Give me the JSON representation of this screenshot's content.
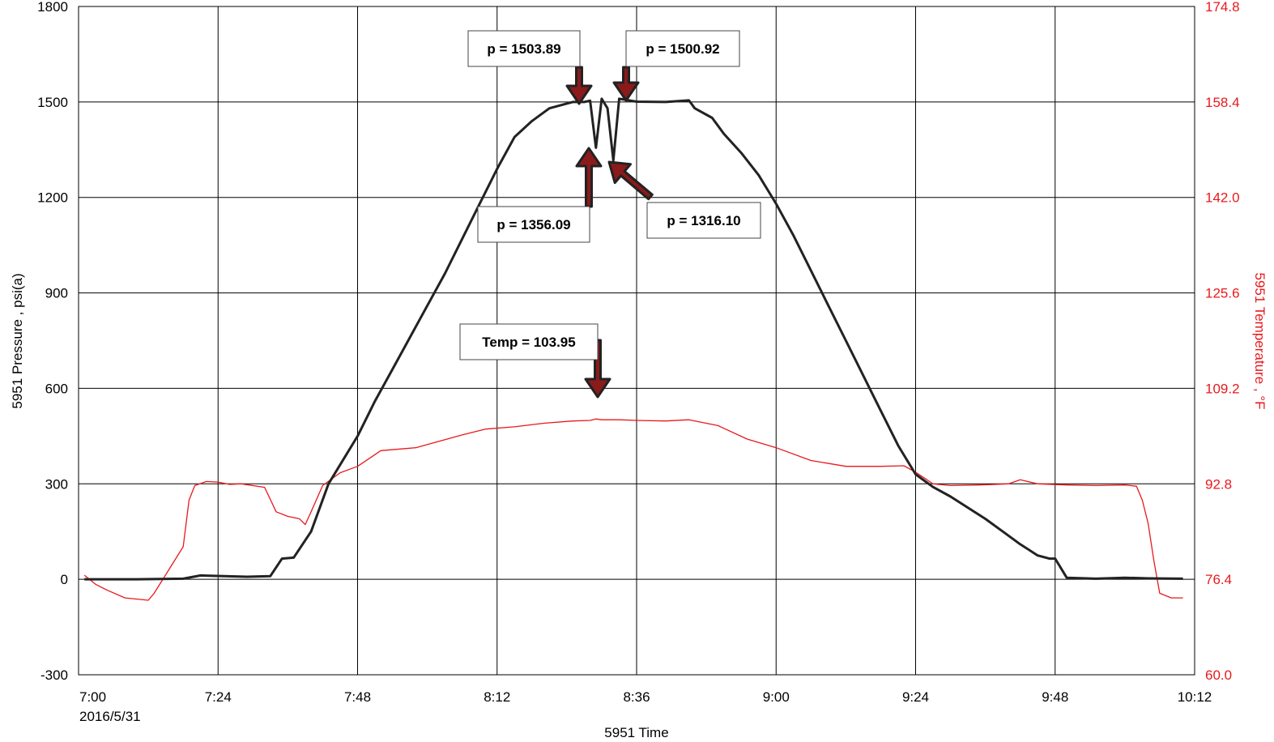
{
  "chart_data": {
    "type": "line",
    "title": "",
    "xlabel": "5951 Time",
    "ylabel": "5951 Pressure , psi(a)",
    "y2label": "5951 Temperature , °F",
    "x_ticks": [
      "7:00",
      "7:24",
      "7:48",
      "8:12",
      "8:36",
      "9:00",
      "9:24",
      "9:48",
      "10:12"
    ],
    "x_date_label": "2016/5/31",
    "xlim": [
      "7:00",
      "10:12"
    ],
    "ylim": [
      -300,
      1800
    ],
    "y_ticks": [
      "-300",
      "0",
      "300",
      "600",
      "900",
      "1200",
      "1500",
      "1800"
    ],
    "y2lim": [
      60.0,
      174.8
    ],
    "y2_ticks": [
      "60.0",
      "76.4",
      "92.8",
      "109.2",
      "125.6",
      "142.0",
      "158.4",
      "174.8"
    ],
    "grid": true,
    "colors": {
      "pressure": "#222222",
      "temperature": "#e8191c",
      "arrow": "#8b1a1a",
      "frame": "#000000"
    },
    "series": [
      {
        "axis": "left",
        "x": [
          "7:01",
          "7:10",
          "7:18",
          "7:21",
          "7:29",
          "7:33",
          "7:35",
          "7:37",
          "7:40",
          "7:43",
          "7:45",
          "7:48",
          "7:51",
          "7:54",
          "7:57",
          "8:00",
          "8:03",
          "8:06",
          "8:09",
          "8:12",
          "8:15",
          "8:18",
          "8:21",
          "8:25",
          "8:27",
          "8:28",
          "8:29",
          "8:30",
          "8:31",
          "8:32",
          "8:33",
          "8:36",
          "8:41",
          "8:45",
          "8:46",
          "8:49",
          "8:51",
          "8:54",
          "8:57",
          "9:00",
          "9:03",
          "9:06",
          "9:09",
          "9:12",
          "9:15",
          "9:18",
          "9:21",
          "9:24",
          "9:27",
          "9:30",
          "9:33",
          "9:36",
          "9:39",
          "9:42",
          "9:45",
          "9:47",
          "9:48",
          "9:50",
          "9:55",
          "10:00",
          "10:04",
          "10:10"
        ],
        "values": [
          0,
          0,
          2,
          12,
          8,
          10,
          65,
          68,
          150,
          300,
          360,
          450,
          560,
          660,
          760,
          860,
          960,
          1070,
          1180,
          1290,
          1390,
          1440,
          1480,
          1500,
          1500,
          1504,
          1356,
          1510,
          1480,
          1316,
          1510,
          1501,
          1500,
          1505,
          1480,
          1450,
          1400,
          1340,
          1270,
          1180,
          1080,
          970,
          860,
          750,
          640,
          530,
          420,
          330,
          290,
          260,
          225,
          190,
          150,
          110,
          75,
          65,
          65,
          5,
          2,
          5,
          3,
          2
        ]
      },
      {
        "axis": "right",
        "x": [
          "7:01",
          "7:03",
          "7:05",
          "7:08",
          "7:12",
          "7:13",
          "7:15",
          "7:18",
          "7:19",
          "7:20",
          "7:22",
          "7:24",
          "7:26",
          "7:28",
          "7:32",
          "7:34",
          "7:36",
          "7:38",
          "7:39",
          "7:40",
          "7:42",
          "7:45",
          "7:48",
          "7:52",
          "7:58",
          "8:06",
          "8:10",
          "8:15",
          "8:20",
          "8:25",
          "8:28",
          "8:29",
          "8:30",
          "8:33",
          "8:36",
          "8:41",
          "8:45",
          "8:50",
          "8:55",
          "9:00",
          "9:06",
          "9:12",
          "9:18",
          "9:22",
          "9:24",
          "9:27",
          "9:30",
          "9:35",
          "9:40",
          "9:42",
          "9:45",
          "9:50",
          "9:55",
          "10:00",
          "10:02",
          "10:03",
          "10:04",
          "10:05",
          "10:06",
          "10:08",
          "10:10"
        ],
        "values": [
          77.1,
          75.5,
          74.5,
          73.2,
          72.8,
          74.0,
          77.2,
          82.0,
          90.0,
          92.5,
          93.2,
          93.1,
          92.7,
          92.8,
          92.2,
          88.0,
          87.2,
          86.8,
          85.8,
          88.0,
          92.5,
          94.7,
          95.8,
          98.5,
          99.0,
          101.2,
          102.2,
          102.6,
          103.2,
          103.6,
          103.7,
          103.95,
          103.8,
          103.8,
          103.7,
          103.6,
          103.8,
          102.8,
          100.5,
          99.0,
          96.8,
          95.8,
          95.8,
          95.9,
          94.8,
          92.8,
          92.5,
          92.6,
          92.8,
          93.5,
          92.8,
          92.6,
          92.5,
          92.6,
          92.4,
          90.0,
          86.0,
          79.5,
          74.0,
          73.2,
          73.2
        ]
      }
    ],
    "annotations": [
      {
        "label": "p = 1503.89"
      },
      {
        "label": "p = 1500.92"
      },
      {
        "label": "p = 1356.09"
      },
      {
        "label": "p = 1316.10"
      },
      {
        "label": "Temp = 103.95"
      }
    ]
  }
}
